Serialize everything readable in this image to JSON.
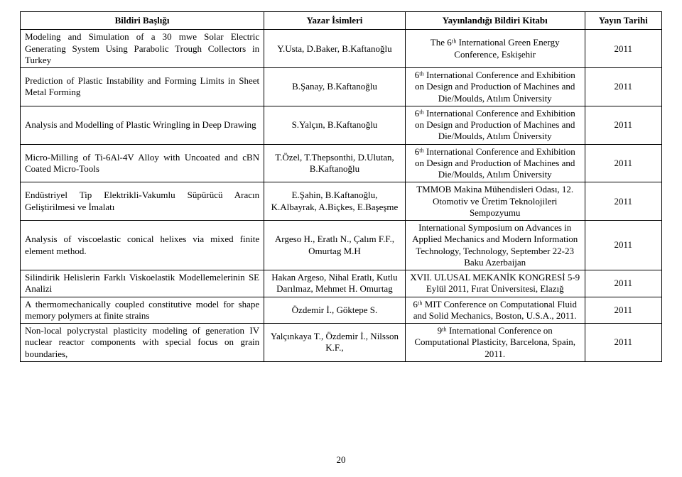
{
  "columns": [
    {
      "key": "title",
      "label": "Bildiri Başlığı"
    },
    {
      "key": "author",
      "label": "Yazar İsimleri"
    },
    {
      "key": "pub",
      "label": "Yayınlandığı Bildiri Kitabı"
    },
    {
      "key": "year",
      "label": "Yayın Tarihi"
    }
  ],
  "rows": [
    {
      "title": "Modeling and Simulation of a 30 mwe Solar Electric Generating System Using Parabolic Trough Collectors in Turkey",
      "author": "Y.Usta, D.Baker, B.Kaftanoğlu",
      "pub": "The 6ᵗʰ International Green Energy Conference, Eskişehir",
      "year": "2011"
    },
    {
      "title": "Prediction of Plastic Instability and Forming Limits in Sheet Metal Forming",
      "author": "B.Şanay, B.Kaftanoğlu",
      "pub": "6ᵗʰ International Conference and Exhibition on Design and Production of Machines and Die/Moulds, Atılım Üniversity",
      "year": "2011"
    },
    {
      "title": "Analysis and Modelling of Plastic Wringling in Deep Drawing",
      "author": "S.Yalçın, B.Kaftanoğlu",
      "pub": "6ᵗʰ International Conference and Exhibition on Design and Production of Machines and Die/Moulds, Atılım Üniversity",
      "year": "2011"
    },
    {
      "title": "Micro-Milling of Ti-6Al-4V Alloy with Uncoated and cBN Coated Micro-Tools",
      "author": "T.Özel, T.Thepsonthi, D.Ulutan, B.Kaftanoğlu",
      "pub": "6ᵗʰ International Conference and Exhibition on Design and Production of Machines and Die/Moulds, Atılım Üniversity",
      "year": "2011"
    },
    {
      "title": "Endüstriyel Tip Elektrikli-Vakumlu Süpürücü Aracın Geliştirilmesi ve İmalatı",
      "author": "E.Şahin, B.Kaftanoğlu, K.Albayrak, A.Biçkes, E.Başeşme",
      "pub": "TMMOB Makina Mühendisleri Odası, 12. Otomotiv ve Üretim Teknolojileri Sempozyumu",
      "year": "2011"
    },
    {
      "title": "Analysis of viscoelastic conical helixes via mixed finite element method.",
      "author": "Argeso H., Eratlı N., Çalım F.F., Omurtag M.H",
      "pub": "International Symposium on Advances in Applied Mechanics and Modern Information Technology, Technology, September 22-23 Baku Azerbaijan",
      "year": "2011"
    },
    {
      "title": "Silindirik Helislerin Farklı Viskoelastik Modellemelerinin SE Analizi",
      "author": "Hakan Argeso, Nihal Eratlı, Kutlu Darılmaz, Mehmet H. Omurtag",
      "pub": "XVII. ULUSAL MEKANİK KONGRESİ 5-9 Eylül 2011, Fırat Üniversitesi, Elazığ",
      "year": "2011"
    },
    {
      "title": "A thermomechanically coupled constitutive model for shape memory polymers at finite strains",
      "author": "Özdemir İ., Göktepe S.",
      "pub": "6ᵗʰ MIT Conference on Computational Fluid and Solid Mechanics, Boston, U.S.A., 2011.",
      "year": "2011"
    },
    {
      "title": "Non-local polycrystal plasticity modeling of generation IV nuclear reactor components with special focus on grain boundaries,",
      "author": "Yalçınkaya T., Özdemir İ., Nilsson K.F.,",
      "pub": "9ᵗʰ International Conference on Computational Plasticity, Barcelona, Spain, 2011.",
      "year": "2011"
    }
  ],
  "page_number": "20"
}
